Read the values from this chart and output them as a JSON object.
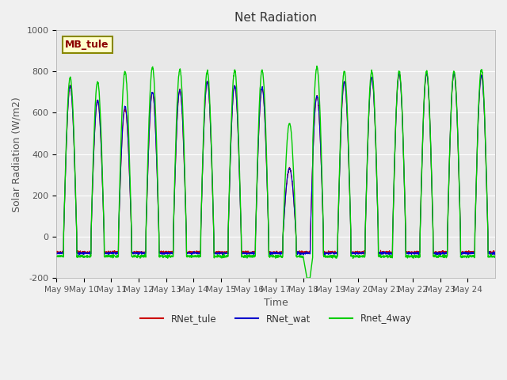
{
  "title": "Net Radiation",
  "xlabel": "Time",
  "ylabel": "Solar Radiation (W/m2)",
  "ylim": [
    -200,
    1000
  ],
  "annotation": "MB_tule",
  "legend_entries": [
    "RNet_tule",
    "RNet_wat",
    "Rnet_4way"
  ],
  "legend_colors": [
    "#cc0000",
    "#0000cc",
    "#00cc00"
  ],
  "x_tick_labels": [
    "May 9",
    "May 10",
    "May 11",
    "May 12",
    "May 13",
    "May 14",
    "May 15",
    "May 16",
    "May 17",
    "May 18",
    "May 19",
    "May 20",
    "May 21",
    "May 22",
    "May 23",
    "May 24"
  ],
  "ytick_labels": [
    "-200",
    "0",
    "200",
    "400",
    "600",
    "800",
    "1000"
  ],
  "ytick_values": [
    -200,
    0,
    200,
    400,
    600,
    800,
    1000
  ],
  "fig_bg_color": "#f0f0f0",
  "plot_bg_color": "#e8e8e8",
  "grid_color": "#ffffff",
  "annotation_text_color": "#8b0000",
  "annotation_bg_color": "#ffffcc",
  "annotation_edge_color": "#888800"
}
